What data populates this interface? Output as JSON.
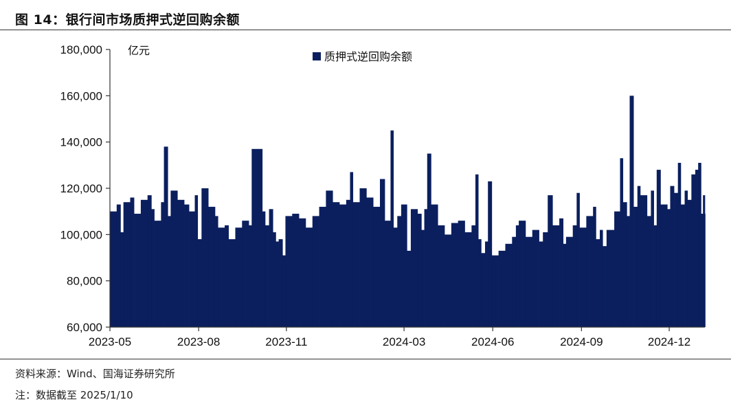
{
  "figure": {
    "title": "图 14：银行间市场质押式逆回购余额",
    "source": "资料来源：Wind、国海证券研究所",
    "note": "注：数据截至 2025/1/10"
  },
  "colors": {
    "bar": "#0b1f5e",
    "axis": "#333333"
  },
  "chart_data": {
    "type": "area",
    "unit_label": "亿元",
    "legend": [
      {
        "name": "质押式逆回购余额",
        "color": "#0b1f5e"
      }
    ],
    "legend_position": "top-center",
    "grid": false,
    "ylim": [
      60000,
      180000
    ],
    "y_ticks": [
      "60,000",
      "80,000",
      "100,000",
      "120,000",
      "140,000",
      "160,000",
      "180,000"
    ],
    "y_tick_values": [
      60000,
      80000,
      100000,
      120000,
      140000,
      160000,
      180000
    ],
    "x_ticks": [
      "2023-05",
      "2023-08",
      "2023-11",
      "2024-03",
      "2024-06",
      "2024-09",
      "2024-12"
    ],
    "x_tick_dates": [
      "2023-05-04",
      "2023-08-04",
      "2023-11-03",
      "2024-03-04",
      "2024-06-04",
      "2024-09-04",
      "2024-12-04"
    ],
    "x_range": [
      "2023-05-04",
      "2025-01-10"
    ],
    "series": [
      {
        "name": "质押式逆回购余额",
        "points": [
          [
            "2023-05-04",
            110000
          ],
          [
            "2023-05-11",
            113000
          ],
          [
            "2023-05-15",
            101000
          ],
          [
            "2023-05-18",
            114000
          ],
          [
            "2023-05-25",
            116000
          ],
          [
            "2023-05-29",
            109000
          ],
          [
            "2023-06-05",
            115000
          ],
          [
            "2023-06-12",
            117000
          ],
          [
            "2023-06-16",
            111000
          ],
          [
            "2023-06-19",
            106000
          ],
          [
            "2023-06-26",
            114000
          ],
          [
            "2023-06-29",
            138000
          ],
          [
            "2023-07-03",
            108000
          ],
          [
            "2023-07-06",
            119000
          ],
          [
            "2023-07-13",
            115000
          ],
          [
            "2023-07-20",
            113000
          ],
          [
            "2023-07-25",
            110000
          ],
          [
            "2023-07-31",
            117000
          ],
          [
            "2023-08-03",
            98000
          ],
          [
            "2023-08-07",
            120000
          ],
          [
            "2023-08-14",
            112000
          ],
          [
            "2023-08-21",
            108000
          ],
          [
            "2023-08-24",
            103000
          ],
          [
            "2023-08-31",
            104000
          ],
          [
            "2023-09-04",
            98000
          ],
          [
            "2023-09-11",
            103000
          ],
          [
            "2023-09-18",
            106000
          ],
          [
            "2023-09-25",
            104000
          ],
          [
            "2023-09-28",
            137000
          ],
          [
            "2023-10-09",
            110000
          ],
          [
            "2023-10-12",
            104000
          ],
          [
            "2023-10-16",
            111000
          ],
          [
            "2023-10-20",
            101000
          ],
          [
            "2023-10-23",
            97000
          ],
          [
            "2023-10-26",
            98000
          ],
          [
            "2023-10-30",
            91000
          ],
          [
            "2023-11-02",
            108000
          ],
          [
            "2023-11-09",
            109000
          ],
          [
            "2023-11-16",
            107000
          ],
          [
            "2023-11-23",
            103000
          ],
          [
            "2023-11-30",
            108000
          ],
          [
            "2023-12-07",
            112000
          ],
          [
            "2023-12-14",
            119000
          ],
          [
            "2023-12-21",
            114000
          ],
          [
            "2023-12-28",
            113000
          ],
          [
            "2024-01-04",
            115000
          ],
          [
            "2024-01-08",
            127000
          ],
          [
            "2024-01-11",
            114000
          ],
          [
            "2024-01-18",
            120000
          ],
          [
            "2024-01-25",
            116000
          ],
          [
            "2024-02-01",
            112000
          ],
          [
            "2024-02-08",
            124000
          ],
          [
            "2024-02-13",
            106000
          ],
          [
            "2024-02-19",
            145000
          ],
          [
            "2024-02-22",
            103000
          ],
          [
            "2024-02-26",
            108000
          ],
          [
            "2024-03-01",
            113000
          ],
          [
            "2024-03-07",
            93000
          ],
          [
            "2024-03-11",
            111000
          ],
          [
            "2024-03-18",
            109000
          ],
          [
            "2024-03-22",
            102000
          ],
          [
            "2024-03-25",
            111000
          ],
          [
            "2024-03-28",
            135000
          ],
          [
            "2024-04-01",
            113000
          ],
          [
            "2024-04-08",
            104000
          ],
          [
            "2024-04-15",
            100000
          ],
          [
            "2024-04-22",
            105000
          ],
          [
            "2024-04-29",
            106000
          ],
          [
            "2024-05-06",
            101000
          ],
          [
            "2024-05-13",
            104000
          ],
          [
            "2024-05-17",
            126000
          ],
          [
            "2024-05-20",
            98000
          ],
          [
            "2024-05-23",
            92000
          ],
          [
            "2024-05-27",
            97000
          ],
          [
            "2024-05-30",
            123000
          ],
          [
            "2024-06-03",
            91000
          ],
          [
            "2024-06-10",
            93000
          ],
          [
            "2024-06-17",
            96000
          ],
          [
            "2024-06-24",
            99000
          ],
          [
            "2024-06-28",
            104000
          ],
          [
            "2024-07-01",
            106000
          ],
          [
            "2024-07-08",
            99000
          ],
          [
            "2024-07-15",
            102000
          ],
          [
            "2024-07-22",
            97000
          ],
          [
            "2024-07-26",
            101000
          ],
          [
            "2024-07-31",
            117000
          ],
          [
            "2024-08-05",
            104000
          ],
          [
            "2024-08-12",
            107000
          ],
          [
            "2024-08-16",
            96000
          ],
          [
            "2024-08-19",
            99000
          ],
          [
            "2024-08-26",
            104000
          ],
          [
            "2024-08-30",
            118000
          ],
          [
            "2024-09-02",
            103000
          ],
          [
            "2024-09-09",
            108000
          ],
          [
            "2024-09-16",
            112000
          ],
          [
            "2024-09-19",
            98000
          ],
          [
            "2024-09-23",
            102000
          ],
          [
            "2024-09-26",
            95000
          ],
          [
            "2024-09-30",
            102000
          ],
          [
            "2024-10-08",
            110000
          ],
          [
            "2024-10-14",
            133000
          ],
          [
            "2024-10-17",
            114000
          ],
          [
            "2024-10-21",
            108000
          ],
          [
            "2024-10-24",
            160000
          ],
          [
            "2024-10-28",
            112000
          ],
          [
            "2024-11-01",
            121000
          ],
          [
            "2024-11-04",
            117000
          ],
          [
            "2024-11-11",
            108000
          ],
          [
            "2024-11-15",
            119000
          ],
          [
            "2024-11-18",
            104000
          ],
          [
            "2024-11-21",
            128000
          ],
          [
            "2024-11-25",
            113000
          ],
          [
            "2024-12-02",
            111000
          ],
          [
            "2024-12-05",
            121000
          ],
          [
            "2024-12-09",
            118000
          ],
          [
            "2024-12-13",
            131000
          ],
          [
            "2024-12-16",
            113000
          ],
          [
            "2024-12-20",
            119000
          ],
          [
            "2024-12-23",
            115000
          ],
          [
            "2024-12-27",
            126000
          ],
          [
            "2024-12-31",
            128000
          ],
          [
            "2025-01-03",
            131000
          ],
          [
            "2025-01-06",
            109000
          ],
          [
            "2025-01-08",
            117000
          ],
          [
            "2025-01-10",
            109000
          ]
        ]
      }
    ]
  }
}
